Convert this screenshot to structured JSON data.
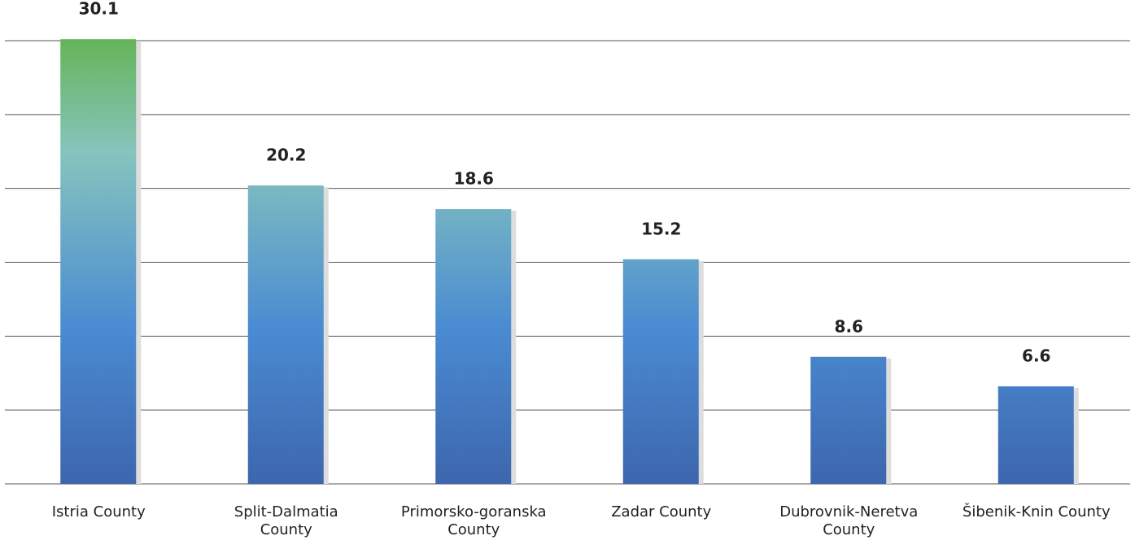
{
  "chart_data": {
    "type": "bar",
    "categories": [
      "Istria County",
      "Split-Dalmatia County",
      "Primorsko-goranska County",
      "Zadar County",
      "Dubrovnik-Neretva County",
      "Šibenik-Knin County"
    ],
    "values": [
      30.1,
      20.2,
      18.6,
      15.2,
      8.6,
      6.6
    ],
    "ylim": [
      0,
      30
    ],
    "yticks": [
      0,
      5,
      10,
      15,
      20,
      25,
      30
    ],
    "grid": true
  }
}
